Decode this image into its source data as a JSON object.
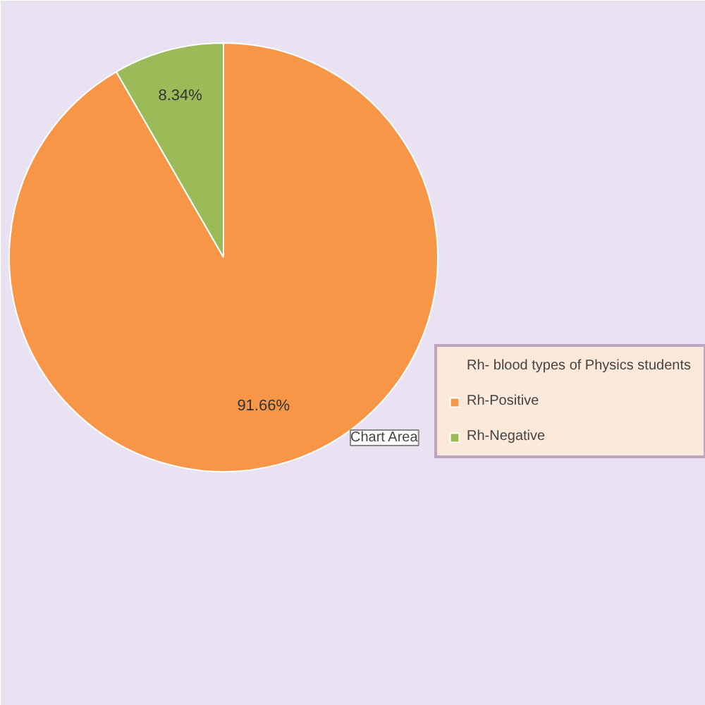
{
  "chart_data": {
    "type": "pie",
    "categories": [
      "Rh- blood types of Physics students",
      "Rh-Positive",
      "Rh-Negative"
    ],
    "values": [
      0,
      91.66,
      8.34
    ],
    "colors": [
      "#4f81bd",
      "#f79646",
      "#9bbb59"
    ],
    "value_labels": [
      null,
      "91.66%",
      "8.34%"
    ],
    "legend": "right",
    "annotations": [
      "Chart Area"
    ]
  }
}
